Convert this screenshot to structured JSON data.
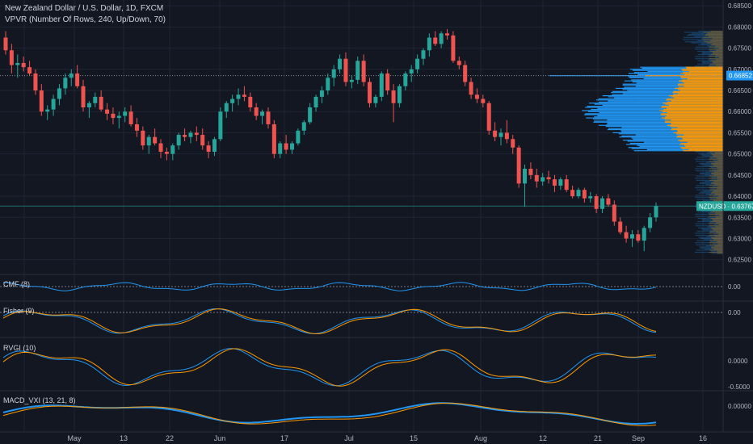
{
  "header": {
    "title_line": "New Zealand Dollar / U.S. Dollar, 1D, FXCM",
    "indicator_line": "VPVR (Number Of Rows, 240, Up/Down, 70)"
  },
  "price_axis": {
    "ticks": [
      "0.68500",
      "0.68000",
      "0.67500",
      "0.67000",
      "0.66500",
      "0.66000",
      "0.65500",
      "0.65000",
      "0.64500",
      "0.64000",
      "0.63500",
      "0.63000",
      "0.62500"
    ],
    "poc_price": "0.66852",
    "last_label": "NZDUSD",
    "last_price": "0.63767"
  },
  "panes": {
    "cmf": {
      "label": "CMF (8)",
      "tick": "0.00"
    },
    "fisher": {
      "label": "Fisher (9)",
      "tick": "0.00"
    },
    "rvgi": {
      "label": "RVGI (10)",
      "ticks": [
        "0.0000",
        "-0.5000"
      ]
    },
    "macd": {
      "label": "MACD_VXI (13, 21, 8)",
      "tick": "0.00000"
    }
  },
  "time_axis": [
    "May",
    "13",
    "22",
    "Jun",
    "17",
    "Jul",
    "15",
    "Aug",
    "12",
    "21",
    "Sep",
    "16"
  ],
  "colors": {
    "bg": "#131722",
    "up": "#26a69a",
    "down": "#ef5350",
    "blue": "#2196f3",
    "orange": "#ff9800"
  },
  "chart_data": {
    "type": "candlestick",
    "symbol": "NZDUSD",
    "interval": "1D",
    "ylim": [
      0.6215,
      0.686
    ],
    "current_price": 0.63767,
    "poc": 0.66852,
    "candles": [
      [
        0.6775,
        0.679,
        0.6735,
        0.6745
      ],
      [
        0.6745,
        0.676,
        0.669,
        0.671
      ],
      [
        0.671,
        0.6735,
        0.668,
        0.6715
      ],
      [
        0.6715,
        0.673,
        0.6695,
        0.6705
      ],
      [
        0.6705,
        0.672,
        0.6685,
        0.669
      ],
      [
        0.669,
        0.67,
        0.664,
        0.665
      ],
      [
        0.665,
        0.6665,
        0.659,
        0.66
      ],
      [
        0.66,
        0.6615,
        0.658,
        0.6605
      ],
      [
        0.6605,
        0.664,
        0.659,
        0.663
      ],
      [
        0.663,
        0.6665,
        0.6615,
        0.6655
      ],
      [
        0.6655,
        0.669,
        0.664,
        0.668
      ],
      [
        0.668,
        0.67,
        0.666,
        0.669
      ],
      [
        0.669,
        0.671,
        0.6655,
        0.666
      ],
      [
        0.666,
        0.6675,
        0.66,
        0.661
      ],
      [
        0.661,
        0.6625,
        0.6585,
        0.662
      ],
      [
        0.662,
        0.6645,
        0.661,
        0.6635
      ],
      [
        0.6635,
        0.665,
        0.66,
        0.6605
      ],
      [
        0.6605,
        0.662,
        0.658,
        0.6595
      ],
      [
        0.6595,
        0.661,
        0.657,
        0.6585
      ],
      [
        0.6585,
        0.66,
        0.656,
        0.659
      ],
      [
        0.659,
        0.661,
        0.6575,
        0.66
      ],
      [
        0.66,
        0.6615,
        0.6565,
        0.657
      ],
      [
        0.657,
        0.6585,
        0.654,
        0.6555
      ],
      [
        0.6555,
        0.6565,
        0.651,
        0.652
      ],
      [
        0.652,
        0.6545,
        0.65,
        0.654
      ],
      [
        0.654,
        0.656,
        0.652,
        0.6525
      ],
      [
        0.6525,
        0.6535,
        0.649,
        0.6505
      ],
      [
        0.6505,
        0.6515,
        0.6485,
        0.65
      ],
      [
        0.65,
        0.6525,
        0.6485,
        0.652
      ],
      [
        0.652,
        0.655,
        0.651,
        0.6545
      ],
      [
        0.6545,
        0.656,
        0.653,
        0.654
      ],
      [
        0.654,
        0.6555,
        0.6525,
        0.655
      ],
      [
        0.655,
        0.6565,
        0.653,
        0.6545
      ],
      [
        0.6545,
        0.656,
        0.651,
        0.652
      ],
      [
        0.652,
        0.653,
        0.649,
        0.6505
      ],
      [
        0.6505,
        0.654,
        0.6495,
        0.6535
      ],
      [
        0.6535,
        0.661,
        0.653,
        0.66
      ],
      [
        0.66,
        0.6625,
        0.6585,
        0.662
      ],
      [
        0.662,
        0.664,
        0.66,
        0.663
      ],
      [
        0.663,
        0.6655,
        0.6615,
        0.664
      ],
      [
        0.664,
        0.666,
        0.6625,
        0.6635
      ],
      [
        0.6635,
        0.6645,
        0.66,
        0.661
      ],
      [
        0.661,
        0.662,
        0.658,
        0.659
      ],
      [
        0.659,
        0.6605,
        0.657,
        0.66
      ],
      [
        0.66,
        0.661,
        0.656,
        0.657
      ],
      [
        0.657,
        0.658,
        0.649,
        0.65
      ],
      [
        0.65,
        0.653,
        0.649,
        0.6525
      ],
      [
        0.6525,
        0.6545,
        0.65,
        0.651
      ],
      [
        0.651,
        0.653,
        0.65,
        0.6525
      ],
      [
        0.6525,
        0.656,
        0.652,
        0.6555
      ],
      [
        0.6555,
        0.658,
        0.6545,
        0.6575
      ],
      [
        0.6575,
        0.662,
        0.657,
        0.661
      ],
      [
        0.661,
        0.664,
        0.66,
        0.6635
      ],
      [
        0.6635,
        0.666,
        0.662,
        0.665
      ],
      [
        0.665,
        0.669,
        0.664,
        0.668
      ],
      [
        0.668,
        0.671,
        0.666,
        0.67
      ],
      [
        0.67,
        0.6735,
        0.669,
        0.6725
      ],
      [
        0.6725,
        0.674,
        0.666,
        0.667
      ],
      [
        0.667,
        0.6685,
        0.6655,
        0.6675
      ],
      [
        0.6675,
        0.673,
        0.6665,
        0.672
      ],
      [
        0.672,
        0.6735,
        0.666,
        0.667
      ],
      [
        0.667,
        0.668,
        0.661,
        0.662
      ],
      [
        0.662,
        0.664,
        0.661,
        0.6635
      ],
      [
        0.6635,
        0.6695,
        0.6625,
        0.669
      ],
      [
        0.669,
        0.67,
        0.664,
        0.665
      ],
      [
        0.665,
        0.6665,
        0.6575,
        0.662
      ],
      [
        0.662,
        0.6665,
        0.661,
        0.666
      ],
      [
        0.666,
        0.6695,
        0.665,
        0.669
      ],
      [
        0.669,
        0.671,
        0.667,
        0.67
      ],
      [
        0.67,
        0.6735,
        0.669,
        0.6725
      ],
      [
        0.6725,
        0.675,
        0.671,
        0.6745
      ],
      [
        0.6745,
        0.6785,
        0.673,
        0.6775
      ],
      [
        0.6775,
        0.679,
        0.6755,
        0.676
      ],
      [
        0.676,
        0.679,
        0.675,
        0.6785
      ],
      [
        0.6785,
        0.6795,
        0.677,
        0.678
      ],
      [
        0.678,
        0.679,
        0.6715,
        0.672
      ],
      [
        0.672,
        0.673,
        0.67,
        0.671
      ],
      [
        0.671,
        0.672,
        0.666,
        0.667
      ],
      [
        0.667,
        0.668,
        0.663,
        0.664
      ],
      [
        0.664,
        0.6655,
        0.662,
        0.663
      ],
      [
        0.663,
        0.664,
        0.661,
        0.662
      ],
      [
        0.662,
        0.6625,
        0.6545,
        0.6555
      ],
      [
        0.6555,
        0.6575,
        0.653,
        0.654
      ],
      [
        0.654,
        0.656,
        0.652,
        0.655
      ],
      [
        0.655,
        0.658,
        0.6525,
        0.6535
      ],
      [
        0.6535,
        0.6545,
        0.65,
        0.6515
      ],
      [
        0.6515,
        0.652,
        0.642,
        0.643
      ],
      [
        0.643,
        0.6475,
        0.6375,
        0.6465
      ],
      [
        0.6465,
        0.648,
        0.644,
        0.645
      ],
      [
        0.645,
        0.6465,
        0.642,
        0.6435
      ],
      [
        0.6435,
        0.6455,
        0.6425,
        0.6445
      ],
      [
        0.6445,
        0.646,
        0.643,
        0.644
      ],
      [
        0.644,
        0.645,
        0.641,
        0.6425
      ],
      [
        0.6425,
        0.6445,
        0.6415,
        0.644
      ],
      [
        0.644,
        0.645,
        0.641,
        0.6415
      ],
      [
        0.6415,
        0.6425,
        0.6395,
        0.64
      ],
      [
        0.64,
        0.642,
        0.6395,
        0.6415
      ],
      [
        0.6415,
        0.642,
        0.6385,
        0.6395
      ],
      [
        0.6395,
        0.641,
        0.6385,
        0.64
      ],
      [
        0.64,
        0.6405,
        0.636,
        0.637
      ],
      [
        0.637,
        0.64,
        0.636,
        0.6395
      ],
      [
        0.6395,
        0.6405,
        0.6375,
        0.638
      ],
      [
        0.638,
        0.639,
        0.633,
        0.634
      ],
      [
        0.634,
        0.635,
        0.631,
        0.6315
      ],
      [
        0.6315,
        0.633,
        0.629,
        0.63
      ],
      [
        0.63,
        0.632,
        0.628,
        0.631
      ],
      [
        0.631,
        0.632,
        0.629,
        0.6295
      ],
      [
        0.6295,
        0.633,
        0.627,
        0.6325
      ],
      [
        0.6325,
        0.636,
        0.6315,
        0.635
      ],
      [
        0.635,
        0.6385,
        0.634,
        0.6377
      ]
    ]
  }
}
